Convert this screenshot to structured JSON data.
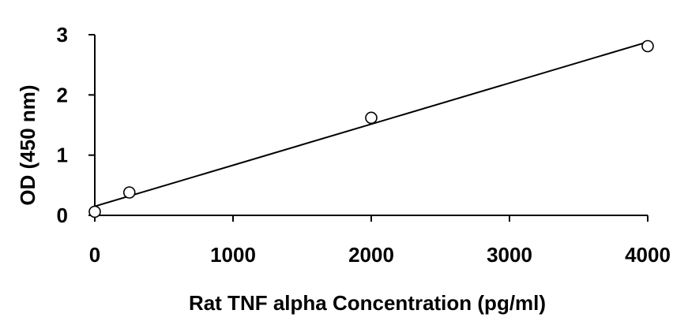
{
  "chart_data": {
    "type": "scatter",
    "title": "",
    "xlabel": "Rat TNF alpha Concentration (pg/ml)",
    "ylabel": "OD (450 nm)",
    "xlim": [
      0,
      4000
    ],
    "ylim": [
      0,
      3
    ],
    "x_ticks": [
      "0",
      "1000",
      "2000",
      "3000",
      "4000"
    ],
    "y_ticks": [
      "0",
      "1",
      "2",
      "3"
    ],
    "grid": false,
    "legend": "none",
    "series": [
      {
        "x": [
          0,
          250,
          2000,
          4000
        ],
        "y": [
          0.06,
          0.38,
          1.62,
          2.81
        ],
        "marker": "open-circle",
        "color": "#000000"
      }
    ],
    "trendline": {
      "type": "linear",
      "x": [
        0,
        4000
      ],
      "y": [
        0.15,
        2.88
      ]
    }
  }
}
